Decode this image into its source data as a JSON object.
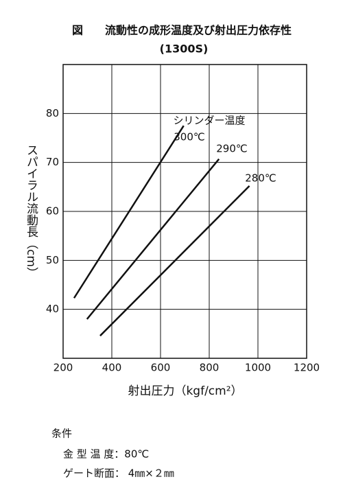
{
  "chart_data": {
    "type": "line",
    "title": "図　　流動性の成形温度及び射出圧力依存性",
    "subtitle": "(1300S)",
    "xlabel": "射出圧力（kgf/cm²）",
    "ylabel": "スパイラル流動長（cm）",
    "annotation": "シリンダー温度",
    "series": [
      {
        "name": "300℃",
        "color": "#111111",
        "x": [
          245,
          695
        ],
        "values": [
          42.3,
          77.5
        ]
      },
      {
        "name": "290℃",
        "color": "#111111",
        "x": [
          298,
          840
        ],
        "values": [
          38,
          70.7
        ]
      },
      {
        "name": "280℃",
        "color": "#111111",
        "x": [
          352,
          965
        ],
        "values": [
          34.6,
          65.2
        ]
      }
    ],
    "xlim": [
      200,
      1200
    ],
    "xticks": [
      200,
      400,
      600,
      800,
      1000,
      1200
    ],
    "ylim": [
      30,
      90
    ],
    "yticks": [
      40,
      50,
      60,
      70,
      80
    ],
    "grid": true
  },
  "conditions": {
    "title": "条件",
    "lines": [
      "金 型 温 度：80℃",
      "ゲート断面： 4㎜×２㎜"
    ]
  }
}
